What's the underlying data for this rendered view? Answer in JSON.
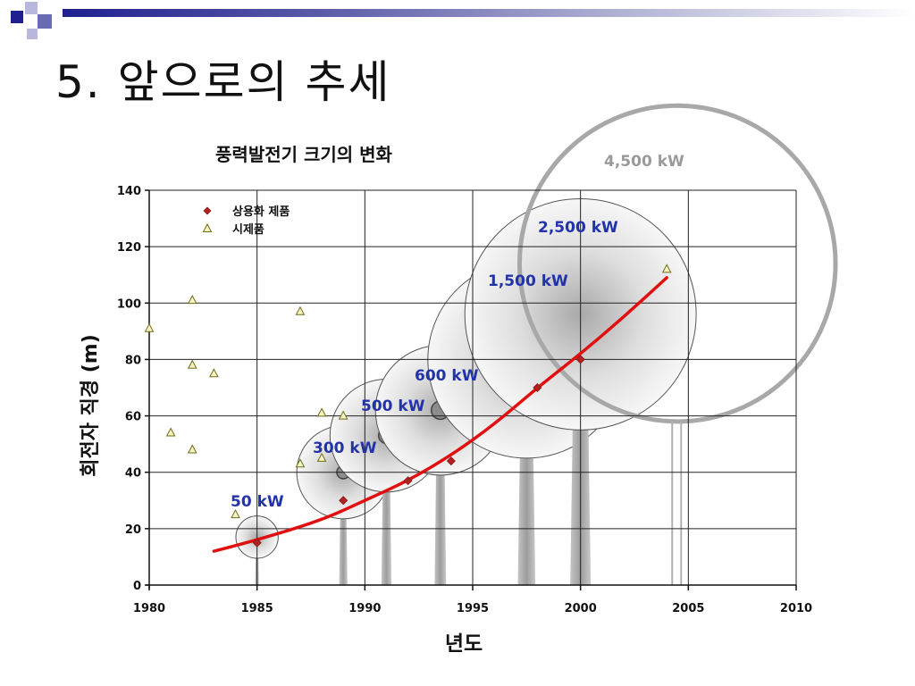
{
  "slide": {
    "title": "5. 앞으로의 추세",
    "accent_dark": "#1f1f8f",
    "accent_mid": "#6a6ab4",
    "accent_light": "#b8b8dc"
  },
  "chart_data": {
    "type": "scatter",
    "title": "풍력발전기 크기의 변화",
    "xlabel": "년도",
    "ylabel": "회전자 직경 (m)",
    "xlim": [
      1980,
      2010
    ],
    "ylim": [
      0,
      140
    ],
    "xticks": [
      1980,
      1985,
      1990,
      1995,
      2000,
      2005,
      2010
    ],
    "yticks": [
      0,
      20,
      40,
      60,
      80,
      100,
      120,
      140
    ],
    "grid": true,
    "legend_position": "top-left",
    "series": [
      {
        "name": "상용화 제품",
        "marker": "diamond",
        "color": "#b22222",
        "points": [
          [
            1985,
            15
          ],
          [
            1989,
            30
          ],
          [
            1992,
            37
          ],
          [
            1994,
            44
          ],
          [
            1998,
            70
          ],
          [
            2000,
            80
          ]
        ]
      },
      {
        "name": "시제품",
        "marker": "triangle",
        "color": "#c8c832",
        "points": [
          [
            1980,
            91
          ],
          [
            1981,
            54
          ],
          [
            1982,
            101
          ],
          [
            1982,
            78
          ],
          [
            1982,
            48
          ],
          [
            1983,
            75
          ],
          [
            1984,
            25
          ],
          [
            1987,
            97
          ],
          [
            1987,
            43
          ],
          [
            1988,
            61
          ],
          [
            1988,
            45
          ],
          [
            1989,
            60
          ],
          [
            2004,
            112
          ]
        ]
      }
    ],
    "trend_line": {
      "color": "#e01010",
      "points": [
        [
          1983,
          12
        ],
        [
          1985,
          16
        ],
        [
          1988,
          23
        ],
        [
          1990,
          30
        ],
        [
          1992,
          37
        ],
        [
          1994,
          46
        ],
        [
          1996,
          57
        ],
        [
          1998,
          70
        ],
        [
          2000,
          82
        ],
        [
          2002,
          95
        ],
        [
          2004,
          109
        ]
      ]
    },
    "turbines": [
      {
        "label": "50 kW",
        "year": 1985,
        "diameter": 15,
        "hub_height": 17,
        "label_color": "#2233aa",
        "hub_mark": false
      },
      {
        "label": "300 kW",
        "year": 1989,
        "diameter": 33,
        "hub_height": 40,
        "label_color": "#2233aa",
        "hub_mark": true
      },
      {
        "label": "500 kW",
        "year": 1991,
        "diameter": 40,
        "hub_height": 53,
        "label_color": "#2233aa",
        "hub_mark": true
      },
      {
        "label": "600 kW",
        "year": 1993.5,
        "diameter": 46,
        "hub_height": 62,
        "label_color": "#2233aa",
        "hub_mark": true
      },
      {
        "label": "1,500 kW",
        "year": 1997.5,
        "diameter": 70,
        "hub_height": 80,
        "label_color": "#2233aa",
        "hub_mark": true
      },
      {
        "label": "2,500 kW",
        "year": 2000,
        "diameter": 82,
        "hub_height": 96,
        "label_color": "#2233aa",
        "hub_mark": false
      },
      {
        "label": "4,500 kW",
        "year": 2004.5,
        "diameter": 112,
        "hub_height": 114,
        "label_color": "#9a9a9a",
        "hub_mark": false,
        "outline_only": true
      }
    ]
  }
}
